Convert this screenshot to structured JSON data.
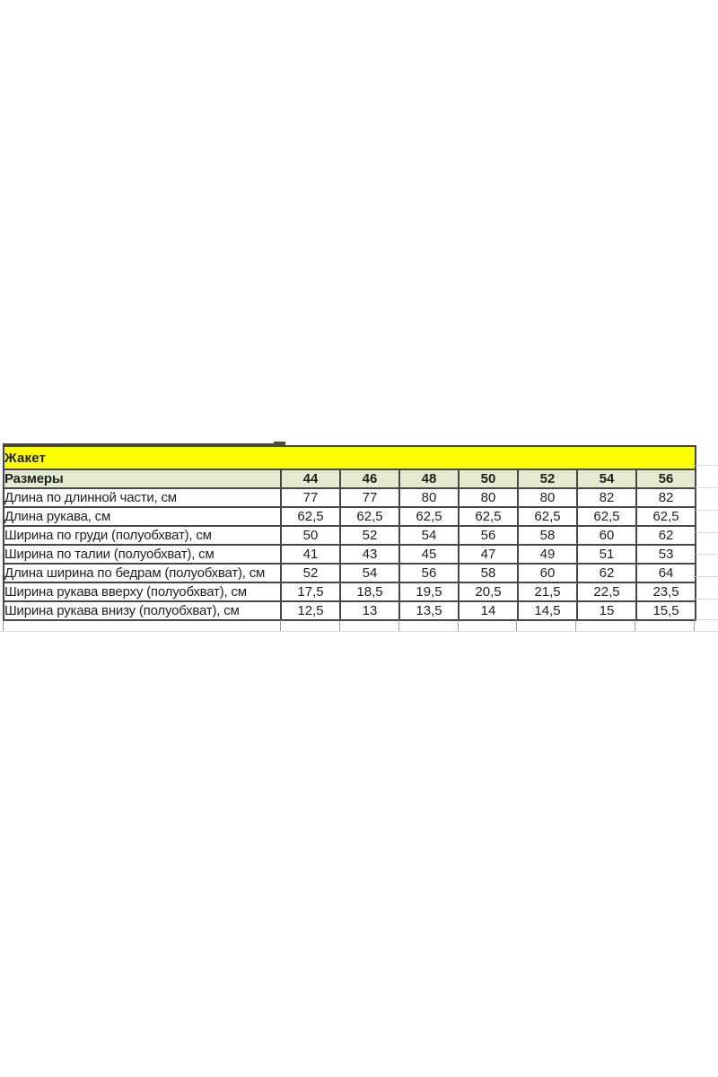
{
  "sheet": {
    "title": "Жакет",
    "header_label": "Размеры",
    "sizes": [
      "44",
      "46",
      "48",
      "50",
      "52",
      "54",
      "56"
    ],
    "rows": [
      {
        "label": "Длина по длинной части, см",
        "values": [
          "77",
          "77",
          "80",
          "80",
          "80",
          "82",
          "82"
        ]
      },
      {
        "label": "Длина рукава, см",
        "values": [
          "62,5",
          "62,5",
          "62,5",
          "62,5",
          "62,5",
          "62,5",
          "62,5"
        ]
      },
      {
        "label": "Ширина по груди (полуобхват), см",
        "values": [
          "50",
          "52",
          "54",
          "56",
          "58",
          "60",
          "62"
        ]
      },
      {
        "label": "Ширина по талии (полуобхват), см",
        "values": [
          "41",
          "43",
          "45",
          "47",
          "49",
          "51",
          "53"
        ]
      },
      {
        "label": "Длина ширина по бедрам (полуобхват), см",
        "values": [
          "52",
          "54",
          "56",
          "58",
          "60",
          "62",
          "64"
        ]
      },
      {
        "label": "Ширина рукава вверху (полуобхват), см",
        "values": [
          "17,5",
          "18,5",
          "19,5",
          "20,5",
          "21,5",
          "22,5",
          "23,5"
        ]
      },
      {
        "label": "Ширина рукава внизу (полуобхват), см",
        "values": [
          "12,5",
          "13",
          "13,5",
          "14",
          "14,5",
          "15",
          "15,5"
        ]
      }
    ],
    "colors": {
      "title_bg": "#ffff00",
      "title_text": "#ff0000",
      "header_bg": "#e4ebd0",
      "cell_text": "#1f1f1f",
      "table_border": "#474747",
      "gridline": "#d9d9d9"
    }
  }
}
